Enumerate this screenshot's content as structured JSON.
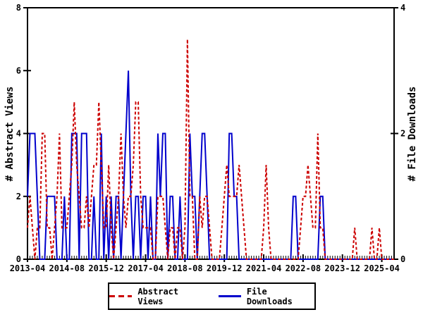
{
  "chart_data": {
    "type": "line",
    "title": "",
    "x_start_month": "2013-04",
    "months_count": 150,
    "x_tick_labels": [
      "2013-04",
      "2014-08",
      "2015-12",
      "2017-04",
      "2018-08",
      "2019-12",
      "2021-04",
      "2022-08",
      "2023-12",
      "2025-04"
    ],
    "x_tick_month_indices": [
      0,
      16,
      32,
      48,
      64,
      80,
      96,
      112,
      128,
      144
    ],
    "left_axis": {
      "label": "# Abstract Views",
      "range": [
        0,
        8
      ],
      "ticks": [
        0,
        2,
        4,
        6,
        8
      ]
    },
    "right_axis": {
      "label": "# File Downloads",
      "range": [
        0,
        4
      ],
      "ticks": [
        0,
        2,
        4
      ]
    },
    "grid": false,
    "legend_position": "bottom",
    "series": [
      {
        "name": "Abstract Views",
        "axis": "left",
        "color": "#cc0000",
        "style": "dashed",
        "values": [
          1,
          2,
          1,
          0,
          1,
          1,
          4,
          4,
          1,
          1,
          0,
          1,
          2,
          4,
          1,
          1,
          1,
          2,
          3,
          5,
          3,
          2,
          1,
          1,
          2,
          1,
          2,
          3,
          3,
          5,
          3,
          1,
          1,
          3,
          1,
          0,
          1,
          2,
          4,
          2,
          1,
          2,
          2,
          3,
          5,
          5,
          2,
          1,
          1,
          1,
          1,
          0,
          0,
          2,
          2,
          2,
          1,
          0,
          1,
          1,
          0,
          1,
          1,
          0,
          1,
          7,
          2,
          2,
          0,
          0,
          2,
          1,
          2,
          2,
          1,
          0,
          0,
          0,
          0,
          1,
          2,
          3,
          2,
          2,
          2,
          2,
          3,
          2,
          1,
          0,
          0,
          0,
          0,
          0,
          0,
          0,
          1,
          3,
          1,
          0,
          0,
          0,
          0,
          0,
          0,
          0,
          0,
          0,
          0,
          0,
          0,
          1,
          2,
          2,
          3,
          2,
          1,
          1,
          4,
          1,
          1,
          0,
          0,
          0,
          0,
          0,
          0,
          0,
          0,
          0,
          0,
          0,
          0,
          1,
          0,
          0,
          0,
          0,
          0,
          0,
          1,
          0,
          0,
          1,
          0,
          0,
          0,
          0,
          0,
          0
        ]
      },
      {
        "name": "File Downloads",
        "axis": "right",
        "color": "#0000cc",
        "style": "solid",
        "values": [
          1,
          2,
          2,
          2,
          1,
          0,
          0,
          0,
          1,
          1,
          1,
          1,
          0,
          0,
          0,
          1,
          0,
          0,
          2,
          2,
          2,
          0,
          2,
          2,
          2,
          0,
          0,
          1,
          0,
          0,
          2,
          0,
          1,
          0,
          1,
          0,
          1,
          1,
          0,
          1,
          2,
          3,
          1,
          0,
          1,
          1,
          0,
          1,
          1,
          0,
          1,
          0,
          0,
          2,
          1,
          2,
          2,
          0,
          1,
          1,
          0,
          0,
          1,
          0,
          0,
          0,
          2,
          1,
          1,
          0,
          1,
          2,
          2,
          1,
          0,
          0,
          0,
          0,
          0,
          0,
          0,
          0,
          2,
          2,
          1,
          1,
          0,
          0,
          0,
          0,
          0,
          0,
          0,
          0,
          0,
          0,
          0,
          0,
          0,
          0,
          0,
          0,
          0,
          0,
          0,
          0,
          0,
          0,
          1,
          1,
          0,
          0,
          0,
          0,
          0,
          0,
          0,
          0,
          0,
          1,
          1,
          0,
          0,
          0,
          0,
          0,
          0,
          0,
          0,
          0,
          0,
          0,
          0,
          0,
          0,
          0,
          0,
          0,
          0,
          0,
          0,
          0,
          0,
          0,
          0,
          0,
          0,
          0,
          0,
          0
        ]
      }
    ]
  },
  "colors": {
    "abstract_views": "#cc0000",
    "file_downloads": "#0000cc",
    "frame": "#000000",
    "background": "#ffffff"
  },
  "legend": {
    "abstract_views_label": "Abstract Views",
    "file_downloads_label": "File Downloads"
  }
}
